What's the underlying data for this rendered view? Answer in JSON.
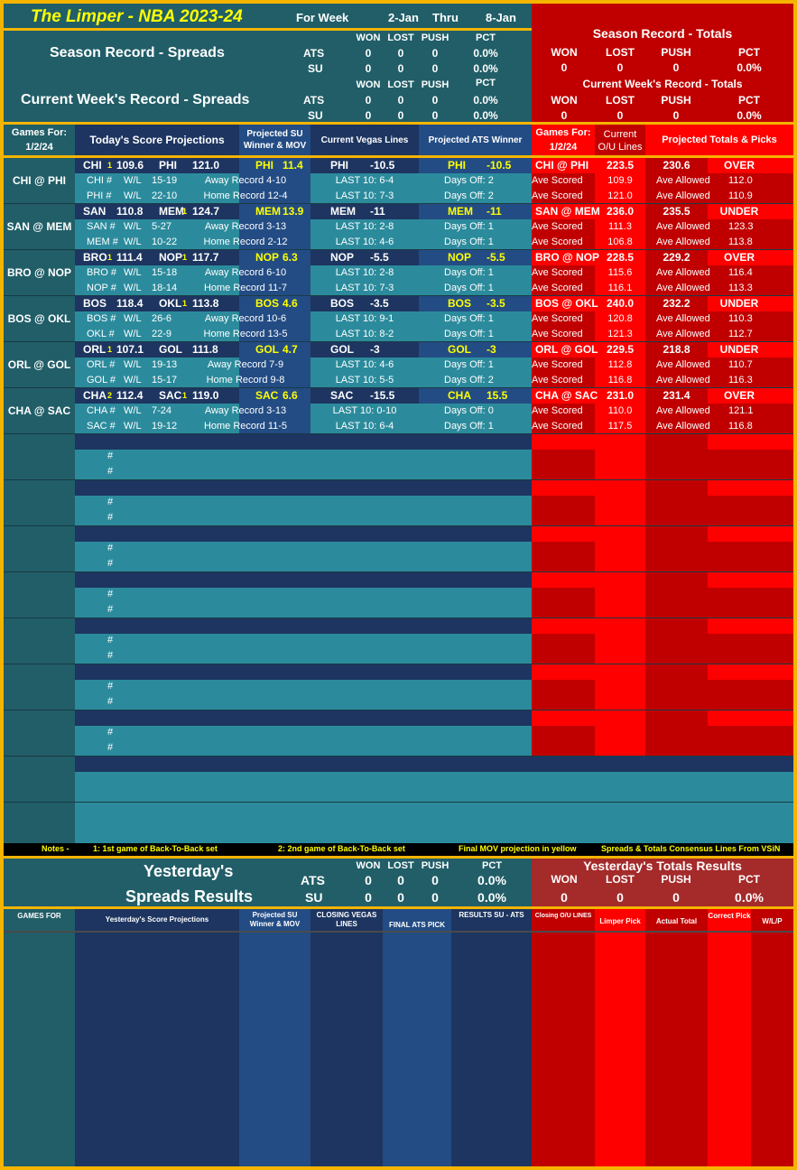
{
  "header": {
    "title": "The Limper - NBA 2023-24",
    "for_week_label": "For Week",
    "week_start": "2-Jan",
    "thru_label": "Thru",
    "week_end": "8-Jan"
  },
  "season_spreads": {
    "title": "Season Record - Spreads",
    "cols": [
      "WON",
      "LOST",
      "PUSH",
      "PCT"
    ],
    "rows": [
      {
        "label": "ATS",
        "won": "0",
        "lost": "0",
        "push": "0",
        "pct": "0.0%"
      },
      {
        "label": "SU",
        "won": "0",
        "lost": "0",
        "push": "0",
        "pct": "0.0%"
      }
    ]
  },
  "week_spreads": {
    "title": "Current Week's Record - Spreads",
    "cols": [
      "WON",
      "LOST",
      "PUSH",
      "PCT"
    ],
    "rows": [
      {
        "label": "ATS",
        "won": "0",
        "lost": "0",
        "push": "0",
        "pct": "0.0%"
      },
      {
        "label": "SU",
        "won": "0",
        "lost": "0",
        "push": "0",
        "pct": "0.0%"
      }
    ]
  },
  "season_totals": {
    "title": "Season Record - Totals",
    "cols": [
      "WON",
      "LOST",
      "PUSH",
      "PCT"
    ],
    "values": {
      "won": "0",
      "lost": "0",
      "push": "0",
      "pct": "0.0%"
    }
  },
  "week_totals": {
    "title": "Current Week's Record - Totals",
    "cols": [
      "WON",
      "LOST",
      "PUSH",
      "PCT"
    ],
    "values": {
      "won": "0",
      "lost": "0",
      "push": "0",
      "pct": "0.0%"
    }
  },
  "table_header": {
    "games_for": "Games For:",
    "date": "1/2/24",
    "score_proj": "Today's Score Projections",
    "su_winner": "Projected SU Winner & MOV",
    "vegas": "Current Vegas Lines",
    "ats_winner": "Projected ATS Winner",
    "games_for_r": "Games For:",
    "date_r": "1/2/24",
    "ou_lines": "Current O/U Lines",
    "totals_picks": "Projected Totals & Picks"
  },
  "games": [
    {
      "matchup": "CHI @ PHI",
      "away": "CHI",
      "away_b2b": "1",
      "away_score": "109.6",
      "home": "PHI",
      "home_b2b": "",
      "home_score": "121.0",
      "su_pick": "PHI",
      "mov": "11.4",
      "vegas_team": "PHI",
      "vegas_line": "-10.5",
      "ats_team": "PHI",
      "ats_line": "-10.5",
      "ou_game": "CHI @ PHI",
      "ou_line": "223.5",
      "proj_total": "230.6",
      "pick": "OVER",
      "away_row": {
        "team": "CHI #",
        "wl": "W/L",
        "rec": "15-19",
        "split": "Away Record 4-10",
        "last10": "LAST 10: 6-4",
        "days": "Days Off: 2",
        "ave_scored_label": "Ave Scored",
        "ave_scored": "109.9",
        "ave_allowed_label": "Ave Allowed",
        "ave_allowed": "112.0"
      },
      "home_row": {
        "team": "PHI #",
        "wl": "W/L",
        "rec": "22-10",
        "split": "Home Record 12-4",
        "last10": "LAST 10: 7-3",
        "days": "Days Off: 2",
        "ave_scored_label": "Ave Scored",
        "ave_scored": "121.0",
        "ave_allowed_label": "Ave Allowed",
        "ave_allowed": "110.9"
      }
    },
    {
      "matchup": "SAN @ MEM",
      "away": "SAN",
      "away_b2b": "",
      "away_score": "110.8",
      "home": "MEM",
      "home_b2b": "1",
      "home_score": "124.7",
      "su_pick": "MEM",
      "mov": "13.9",
      "vegas_team": "MEM",
      "vegas_line": "-11",
      "ats_team": "MEM",
      "ats_line": "-11",
      "ou_game": "SAN @ MEM",
      "ou_line": "236.0",
      "proj_total": "235.5",
      "pick": "UNDER",
      "away_row": {
        "team": "SAN #",
        "wl": "W/L",
        "rec": "5-27",
        "split": "Away Record 3-13",
        "last10": "LAST 10: 2-8",
        "days": "Days Off: 1",
        "ave_scored_label": "Ave Scored",
        "ave_scored": "111.3",
        "ave_allowed_label": "Ave Allowed",
        "ave_allowed": "123.3"
      },
      "home_row": {
        "team": "MEM #",
        "wl": "W/L",
        "rec": "10-22",
        "split": "Home Record 2-12",
        "last10": "LAST 10: 4-6",
        "days": "Days Off: 1",
        "ave_scored_label": "Ave Scored",
        "ave_scored": "106.8",
        "ave_allowed_label": "Ave Allowed",
        "ave_allowed": "113.8"
      }
    },
    {
      "matchup": "BRO @ NOP",
      "away": "BRO",
      "away_b2b": "1",
      "away_score": "111.4",
      "home": "NOP",
      "home_b2b": "1",
      "home_score": "117.7",
      "su_pick": "NOP",
      "mov": "6.3",
      "vegas_team": "NOP",
      "vegas_line": "-5.5",
      "ats_team": "NOP",
      "ats_line": "-5.5",
      "ou_game": "BRO @ NOP",
      "ou_line": "228.5",
      "proj_total": "229.2",
      "pick": "OVER",
      "away_row": {
        "team": "BRO #",
        "wl": "W/L",
        "rec": "15-18",
        "split": "Away Record 6-10",
        "last10": "LAST 10: 2-8",
        "days": "Days Off: 1",
        "ave_scored_label": "Ave Scored",
        "ave_scored": "115.6",
        "ave_allowed_label": "Ave Allowed",
        "ave_allowed": "116.4"
      },
      "home_row": {
        "team": "NOP #",
        "wl": "W/L",
        "rec": "18-14",
        "split": "Home Record 11-7",
        "last10": "LAST 10: 7-3",
        "days": "Days Off: 1",
        "ave_scored_label": "Ave Scored",
        "ave_scored": "116.1",
        "ave_allowed_label": "Ave Allowed",
        "ave_allowed": "113.3"
      }
    },
    {
      "matchup": "BOS @ OKL",
      "away": "BOS",
      "away_b2b": "",
      "away_score": "118.4",
      "home": "OKL",
      "home_b2b": "1",
      "home_score": "113.8",
      "su_pick": "BOS",
      "mov": "4.6",
      "vegas_team": "BOS",
      "vegas_line": "-3.5",
      "ats_team": "BOS",
      "ats_line": "-3.5",
      "ou_game": "BOS @ OKL",
      "ou_line": "240.0",
      "proj_total": "232.2",
      "pick": "UNDER",
      "away_row": {
        "team": "BOS #",
        "wl": "W/L",
        "rec": "26-6",
        "split": "Away Record 10-6",
        "last10": "LAST 10: 9-1",
        "days": "Days Off: 1",
        "ave_scored_label": "Ave Scored",
        "ave_scored": "120.8",
        "ave_allowed_label": "Ave Allowed",
        "ave_allowed": "110.3"
      },
      "home_row": {
        "team": "OKL #",
        "wl": "W/L",
        "rec": "22-9",
        "split": "Home Record 13-5",
        "last10": "LAST 10: 8-2",
        "days": "Days Off: 1",
        "ave_scored_label": "Ave Scored",
        "ave_scored": "121.3",
        "ave_allowed_label": "Ave Allowed",
        "ave_allowed": "112.7"
      }
    },
    {
      "matchup": "ORL @ GOL",
      "away": "ORL",
      "away_b2b": "1",
      "away_score": "107.1",
      "home": "GOL",
      "home_b2b": "",
      "home_score": "111.8",
      "su_pick": "GOL",
      "mov": "4.7",
      "vegas_team": "GOL",
      "vegas_line": "-3",
      "ats_team": "GOL",
      "ats_line": "-3",
      "ou_game": "ORL @ GOL",
      "ou_line": "229.5",
      "proj_total": "218.8",
      "pick": "UNDER",
      "away_row": {
        "team": "ORL #",
        "wl": "W/L",
        "rec": "19-13",
        "split": "Away Record 7-9",
        "last10": "LAST 10: 4-6",
        "days": "Days Off: 1",
        "ave_scored_label": "Ave Scored",
        "ave_scored": "112.8",
        "ave_allowed_label": "Ave Allowed",
        "ave_allowed": "110.7"
      },
      "home_row": {
        "team": "GOL #",
        "wl": "W/L",
        "rec": "15-17",
        "split": "Home Record 9-8",
        "last10": "LAST 10: 5-5",
        "days": "Days Off: 2",
        "ave_scored_label": "Ave Scored",
        "ave_scored": "116.8",
        "ave_allowed_label": "Ave Allowed",
        "ave_allowed": "116.3"
      }
    },
    {
      "matchup": "CHA @ SAC",
      "away": "CHA",
      "away_b2b": "2",
      "away_score": "112.4",
      "home": "SAC",
      "home_b2b": "1",
      "home_score": "119.0",
      "su_pick": "SAC",
      "mov": "6.6",
      "vegas_team": "SAC",
      "vegas_line": "-15.5",
      "ats_team": "CHA",
      "ats_line": "15.5",
      "ou_game": "CHA @ SAC",
      "ou_line": "231.0",
      "proj_total": "231.4",
      "pick": "OVER",
      "away_row": {
        "team": "CHA #",
        "wl": "W/L",
        "rec": "7-24",
        "split": "Away Record 3-13",
        "last10": "LAST 10: 0-10",
        "days": "Days Off: 0",
        "ave_scored_label": "Ave Scored",
        "ave_scored": "110.0",
        "ave_allowed_label": "Ave Allowed",
        "ave_allowed": "121.1"
      },
      "home_row": {
        "team": "SAC #",
        "wl": "W/L",
        "rec": "19-12",
        "split": "Home Record 11-5",
        "last10": "LAST 10: 6-4",
        "days": "Days Off: 1",
        "ave_scored_label": "Ave Scored",
        "ave_scored": "117.5",
        "ave_allowed_label": "Ave Allowed",
        "ave_allowed": "116.8"
      }
    }
  ],
  "empty_marker": "#",
  "notes": {
    "label": "Notes -",
    "n1": "1: 1st game of Back-To-Back set",
    "n2": "2: 2nd game of Back-To-Back set",
    "n3": "Final MOV projection in yellow",
    "n4": "Spreads & Totals Consensus Lines From VSiN"
  },
  "yesterday_spreads": {
    "title1": "Yesterday's",
    "title2": "Spreads Results",
    "cols": [
      "WON",
      "LOST",
      "PUSH",
      "PCT"
    ],
    "rows": [
      {
        "label": "ATS",
        "won": "0",
        "lost": "0",
        "push": "0",
        "pct": "0.0%"
      },
      {
        "label": "SU",
        "won": "0",
        "lost": "0",
        "push": "0",
        "pct": "0.0%"
      }
    ]
  },
  "yesterday_totals": {
    "title": "Yesterday's Totals Results",
    "cols": [
      "WON",
      "LOST",
      "PUSH",
      "PCT"
    ],
    "values": {
      "won": "0",
      "lost": "0",
      "push": "0",
      "pct": "0.0%"
    }
  },
  "yesterday_header": {
    "games_for": "GAMES FOR",
    "score_proj": "Yesterday's Score Projections",
    "su_winner": "Projected SU Winner & MOV",
    "closing": "CLOSING VEGAS LINES",
    "final_ats": "FINAL ATS PICK",
    "results": "RESULTS SU - ATS",
    "closing_ou": "Closing O/U LINES",
    "limper_pick": "Limper Pick",
    "actual_total": "Actual Total",
    "correct_pick": "Correct Pick",
    "wlp": "W/L/P"
  }
}
